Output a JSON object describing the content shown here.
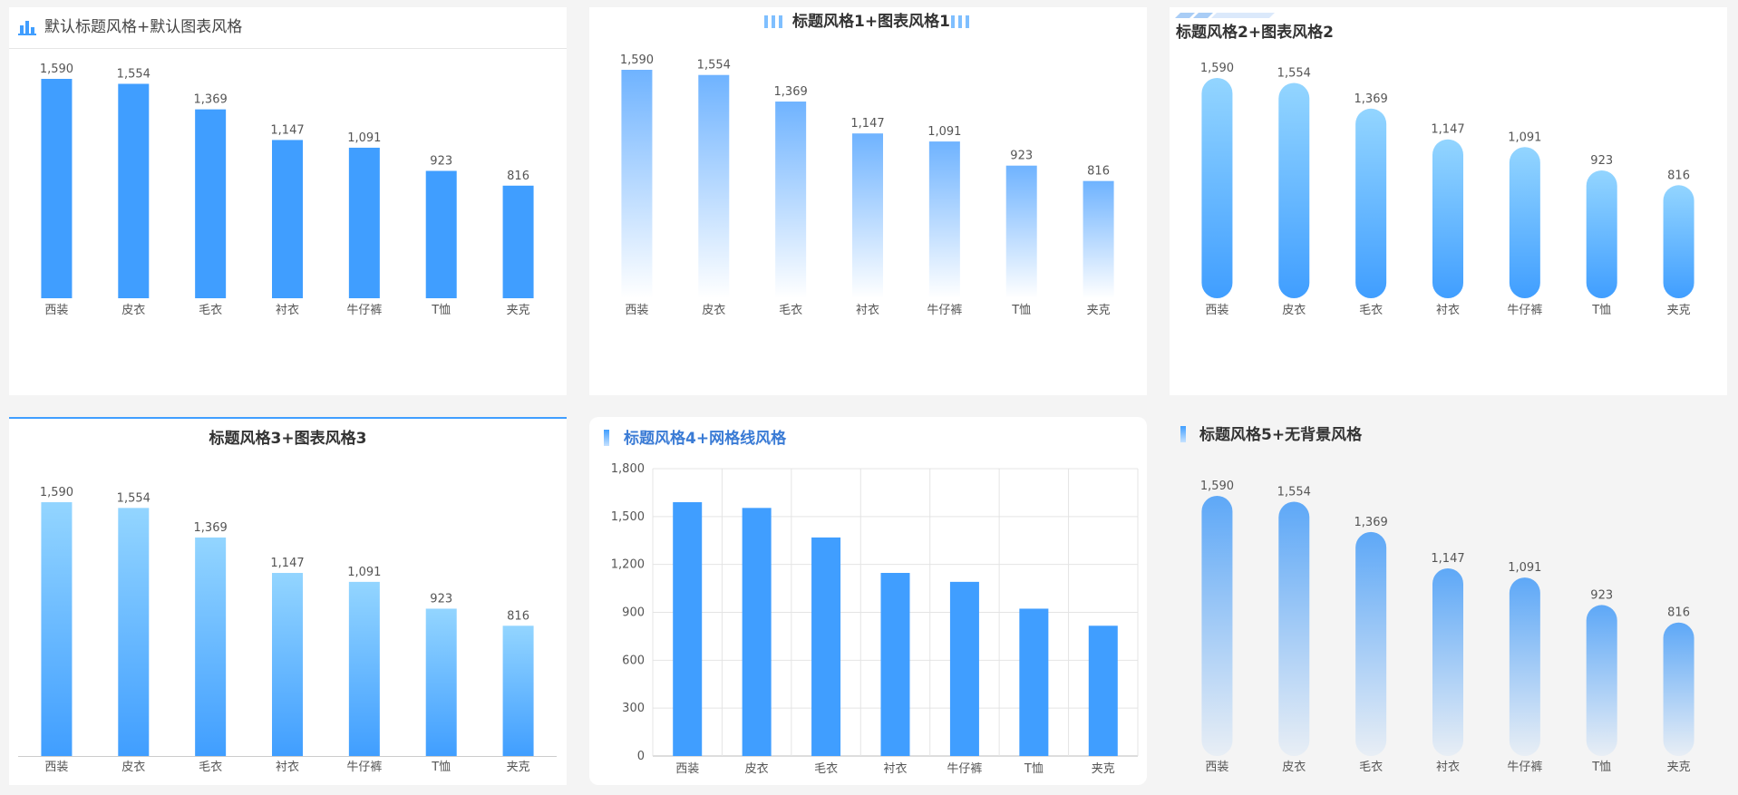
{
  "colors": {
    "primary": "#409eff",
    "gradient_light": "#93d5ff",
    "text": "#333333",
    "axis_label": "#555555",
    "title_blue": "#3a7bd5"
  },
  "panels": [
    {
      "title": "默认标题风格+默认图表风格",
      "title_icon": "bar-chart-icon"
    },
    {
      "title": "标题风格1+图表风格1",
      "title_icon": "stripe-decoration-icon"
    },
    {
      "title": "标题风格2+图表风格2",
      "title_icon": "slant-stripe-decoration-icon"
    },
    {
      "title": "标题风格3+图表风格3",
      "title_icon": "blue-line-decoration-icon"
    },
    {
      "title": "标题风格4+网格线风格",
      "title_icon": "vertical-bar-icon"
    },
    {
      "title": "标题风格5+无背景风格",
      "title_icon": "vertical-bar-icon"
    }
  ],
  "chart_data": [
    {
      "type": "bar",
      "style": "solid",
      "categories": [
        "西装",
        "皮衣",
        "毛衣",
        "衬衣",
        "牛仔裤",
        "T恤",
        "夹克"
      ],
      "values": [
        1590,
        1554,
        1369,
        1147,
        1091,
        923,
        816
      ],
      "data_labels": [
        "1,590",
        "1,554",
        "1,369",
        "1,147",
        "1,091",
        "923",
        "816"
      ],
      "ylim": [
        0,
        1800
      ],
      "grid": false
    },
    {
      "type": "bar",
      "style": "gradient-fade",
      "categories": [
        "西装",
        "皮衣",
        "毛衣",
        "衬衣",
        "牛仔裤",
        "T恤",
        "夹克"
      ],
      "values": [
        1590,
        1554,
        1369,
        1147,
        1091,
        923,
        816
      ],
      "data_labels": [
        "1,590",
        "1,554",
        "1,369",
        "1,147",
        "1,091",
        "923",
        "816"
      ],
      "ylim": [
        0,
        1800
      ],
      "grid": false
    },
    {
      "type": "bar",
      "style": "rounded-gradient",
      "categories": [
        "西装",
        "皮衣",
        "毛衣",
        "衬衣",
        "牛仔裤",
        "T恤",
        "夹克"
      ],
      "values": [
        1590,
        1554,
        1369,
        1147,
        1091,
        923,
        816
      ],
      "data_labels": [
        "1,590",
        "1,554",
        "1,369",
        "1,147",
        "1,091",
        "923",
        "816"
      ],
      "ylim": [
        0,
        1800
      ],
      "grid": false
    },
    {
      "type": "bar",
      "style": "gradient",
      "categories": [
        "西装",
        "皮衣",
        "毛衣",
        "衬衣",
        "牛仔裤",
        "T恤",
        "夹克"
      ],
      "values": [
        1590,
        1554,
        1369,
        1147,
        1091,
        923,
        816
      ],
      "data_labels": [
        "1,590",
        "1,554",
        "1,369",
        "1,147",
        "1,091",
        "923",
        "816"
      ],
      "ylim": [
        0,
        1800
      ],
      "grid": false
    },
    {
      "type": "bar",
      "style": "grid",
      "categories": [
        "西装",
        "皮衣",
        "毛衣",
        "衬衣",
        "牛仔裤",
        "T恤",
        "夹克"
      ],
      "values": [
        1590,
        1554,
        1369,
        1147,
        1091,
        923,
        816
      ],
      "ylim": [
        0,
        1800
      ],
      "yticks": [
        0,
        300,
        600,
        900,
        1200,
        1500,
        1800
      ],
      "ytick_labels": [
        "0",
        "300",
        "600",
        "900",
        "1,200",
        "1,500",
        "1,800"
      ],
      "grid": true
    },
    {
      "type": "bar",
      "style": "rounded-fade",
      "categories": [
        "西装",
        "皮衣",
        "毛衣",
        "衬衣",
        "牛仔裤",
        "T恤",
        "夹克"
      ],
      "values": [
        1590,
        1554,
        1369,
        1147,
        1091,
        923,
        816
      ],
      "data_labels": [
        "1,590",
        "1,554",
        "1,369",
        "1,147",
        "1,091",
        "923",
        "816"
      ],
      "ylim": [
        0,
        1800
      ],
      "grid": false
    }
  ]
}
